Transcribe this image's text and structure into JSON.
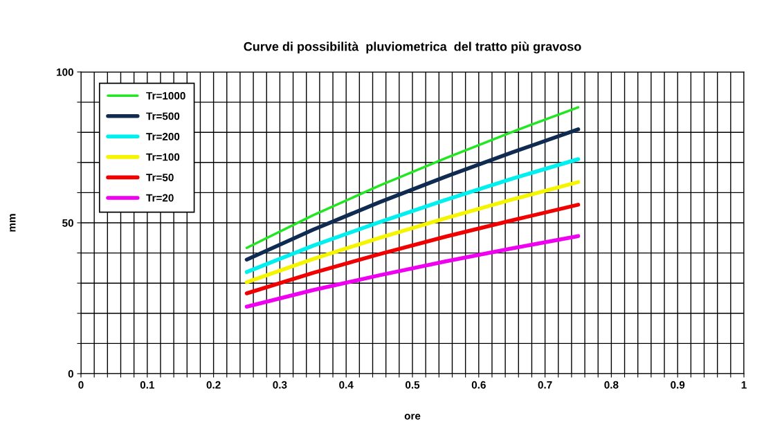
{
  "chart_data": {
    "type": "line",
    "title": "Curve di possibilità  pluviometrica  del tratto più gravoso",
    "xlabel": "ore",
    "ylabel": "mm",
    "x": [
      0.25,
      0.35,
      0.45,
      0.55,
      0.65,
      0.75
    ],
    "series": [
      {
        "name": "Tr=1000",
        "color": "#22e622",
        "values": [
          41.7,
          52.5,
          62.3,
          71.4,
          80.1,
          88.3
        ]
      },
      {
        "name": "Tr=500",
        "color": "#0f2b52",
        "values": [
          37.8,
          47.7,
          56.8,
          65.3,
          73.3,
          81.0
        ]
      },
      {
        "name": "Tr=200",
        "color": "#00f0f0",
        "values": [
          33.7,
          42.4,
          50.2,
          57.6,
          64.6,
          71.1
        ]
      },
      {
        "name": "Tr=100",
        "color": "#f5f500",
        "values": [
          30.3,
          38.0,
          45.0,
          51.5,
          57.7,
          63.5
        ]
      },
      {
        "name": "Tr=50",
        "color": "#f00000",
        "values": [
          26.6,
          33.4,
          39.6,
          45.4,
          50.8,
          56.0
        ]
      },
      {
        "name": "Tr=20",
        "color": "#f000f0",
        "values": [
          22.2,
          27.7,
          32.6,
          37.2,
          41.5,
          45.6
        ]
      }
    ],
    "xlim": [
      0,
      1
    ],
    "ylim": [
      0,
      100
    ],
    "xticks": [
      0,
      {
        "value": 0.02,
        "label": null
      },
      {
        "value": 0.04,
        "label": null
      },
      {
        "value": 0.06,
        "label": null
      },
      {
        "value": 0.08,
        "label": null
      },
      0.1,
      {
        "value": 0.12,
        "label": null
      },
      {
        "value": 0.14,
        "label": null
      },
      {
        "value": 0.16,
        "label": null
      },
      {
        "value": 0.18,
        "label": null
      },
      0.2,
      {
        "value": 0.22,
        "label": null
      },
      {
        "value": 0.24,
        "label": null
      },
      {
        "value": 0.26,
        "label": null
      },
      {
        "value": 0.28,
        "label": null
      },
      0.3,
      {
        "value": 0.32,
        "label": null
      },
      {
        "value": 0.34,
        "label": null
      },
      {
        "value": 0.36,
        "label": null
      },
      {
        "value": 0.38,
        "label": null
      },
      0.4,
      {
        "value": 0.42,
        "label": null
      },
      {
        "value": 0.44,
        "label": null
      },
      {
        "value": 0.46,
        "label": null
      },
      {
        "value": 0.48,
        "label": null
      },
      0.5,
      {
        "value": 0.52,
        "label": null
      },
      {
        "value": 0.54,
        "label": null
      },
      {
        "value": 0.56,
        "label": null
      },
      {
        "value": 0.58,
        "label": null
      },
      0.6,
      {
        "value": 0.62,
        "label": null
      },
      {
        "value": 0.64,
        "label": null
      },
      {
        "value": 0.66,
        "label": null
      },
      {
        "value": 0.68,
        "label": null
      },
      0.7,
      {
        "value": 0.72,
        "label": null
      },
      {
        "value": 0.74,
        "label": null
      },
      {
        "value": 0.76,
        "label": null
      },
      {
        "value": 0.78,
        "label": null
      },
      0.8,
      {
        "value": 0.82,
        "label": null
      },
      {
        "value": 0.84,
        "label": null
      },
      {
        "value": 0.86,
        "label": null
      },
      {
        "value": 0.88,
        "label": null
      },
      0.9,
      {
        "value": 0.92,
        "label": null
      },
      {
        "value": 0.94,
        "label": null
      },
      {
        "value": 0.96,
        "label": null
      },
      {
        "value": 0.98,
        "label": null
      },
      1
    ],
    "yticks": [
      0,
      {
        "value": 10,
        "label": null
      },
      {
        "value": 20,
        "label": null
      },
      {
        "value": 30,
        "label": null
      },
      {
        "value": 40,
        "label": null
      },
      50,
      {
        "value": 60,
        "label": null
      },
      {
        "value": 70,
        "label": null
      },
      {
        "value": 80,
        "label": null
      },
      {
        "value": 90,
        "label": null
      },
      100
    ],
    "grid": true,
    "legend": "top left",
    "marker": "none",
    "line_style": "solid"
  }
}
